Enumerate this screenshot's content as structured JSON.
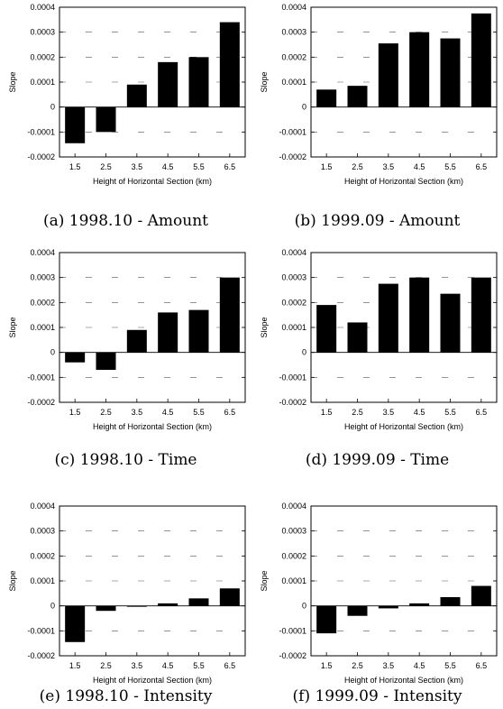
{
  "chart_data": [
    {
      "type": "bar",
      "caption": "(a) 1998.10 - Amount",
      "xlabel": "Height of Horizontal Section (km)",
      "ylabel": "Slope",
      "categories": [
        "1.5",
        "2.5",
        "3.5",
        "4.5",
        "5.5",
        "6.5"
      ],
      "values": [
        -0.000145,
        -0.0001,
        9e-05,
        0.00018,
        0.0002,
        0.00034
      ],
      "ylim": [
        -0.0002,
        0.0004
      ],
      "yticks": [
        "0.0004",
        "0.0003",
        "0.0002",
        "0.0001",
        "0",
        "-0.0001",
        "-0.0002"
      ]
    },
    {
      "type": "bar",
      "caption": "(b) 1999.09 - Amount",
      "xlabel": "Height of Horizontal Section (km)",
      "ylabel": "Slope",
      "categories": [
        "1.5",
        "2.5",
        "3.5",
        "4.5",
        "5.5",
        "6.5"
      ],
      "values": [
        7e-05,
        8.5e-05,
        0.000255,
        0.0003,
        0.000275,
        0.000375
      ],
      "ylim": [
        -0.0002,
        0.0004
      ],
      "yticks": [
        "0.0004",
        "0.0003",
        "0.0002",
        "0.0001",
        "0",
        "-0.0001",
        "-0.0002"
      ]
    },
    {
      "type": "bar",
      "caption": "(c) 1998.10 - Time",
      "xlabel": "Height of Horizontal Section (km)",
      "ylabel": "Slope",
      "categories": [
        "1.5",
        "2.5",
        "3.5",
        "4.5",
        "5.5",
        "6.5"
      ],
      "values": [
        -4e-05,
        -7e-05,
        9e-05,
        0.00016,
        0.00017,
        0.0003
      ],
      "ylim": [
        -0.0002,
        0.0004
      ],
      "yticks": [
        "0.0004",
        "0.0003",
        "0.0002",
        "0.0001",
        "0",
        "-0.0001",
        "-0.0002"
      ]
    },
    {
      "type": "bar",
      "caption": "(d) 1999.09 - Time",
      "xlabel": "Height of Horizontal Section (km)",
      "ylabel": "Slope",
      "categories": [
        "1.5",
        "2.5",
        "3.5",
        "4.5",
        "5.5",
        "6.5"
      ],
      "values": [
        0.00019,
        0.00012,
        0.000275,
        0.0003,
        0.000235,
        0.0003
      ],
      "ylim": [
        -0.0002,
        0.0004
      ],
      "yticks": [
        "0.0004",
        "0.0003",
        "0.0002",
        "0.0001",
        "0",
        "-0.0001",
        "-0.0002"
      ]
    },
    {
      "type": "bar",
      "caption": "(e) 1998.10 - Intensity",
      "xlabel": "Height of Horizontal Section (km)",
      "ylabel": "Slope",
      "categories": [
        "1.5",
        "2.5",
        "3.5",
        "4.5",
        "5.5",
        "6.5"
      ],
      "values": [
        -0.000145,
        -2e-05,
        0.0,
        1e-05,
        3e-05,
        7e-05
      ],
      "ylim": [
        -0.0002,
        0.0004
      ],
      "yticks": [
        "0.0004",
        "0.0003",
        "0.0002",
        "0.0001",
        "0",
        "-0.0001",
        "-0.0002"
      ]
    },
    {
      "type": "bar",
      "caption": "(f) 1999.09 - Intensity",
      "xlabel": "Height of Horizontal Section (km)",
      "ylabel": "Slope",
      "categories": [
        "1.5",
        "2.5",
        "3.5",
        "4.5",
        "5.5",
        "6.5"
      ],
      "values": [
        -0.00011,
        -4e-05,
        -1e-05,
        1e-05,
        3.5e-05,
        8e-05
      ],
      "ylim": [
        -0.0002,
        0.0004
      ],
      "yticks": [
        "0.0004",
        "0.0003",
        "0.0002",
        "0.0001",
        "0",
        "-0.0001",
        "-0.0002"
      ]
    }
  ]
}
